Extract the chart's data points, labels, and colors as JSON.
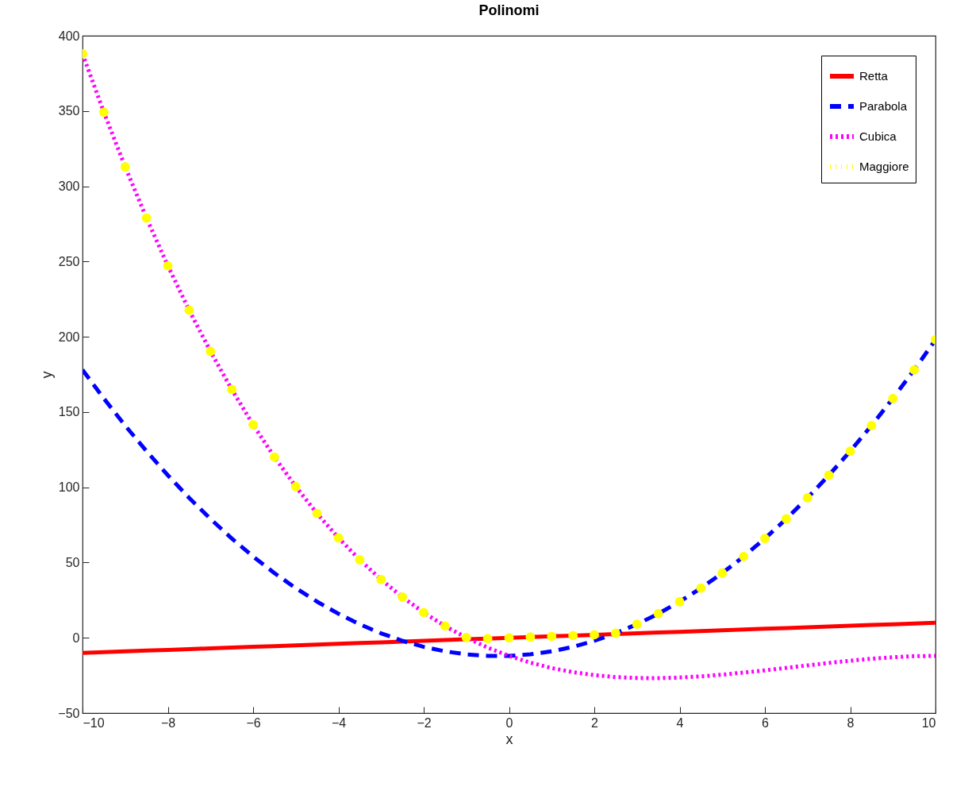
{
  "chart_data": {
    "type": "line",
    "title": "Polinomi",
    "xlabel": "x",
    "ylabel": "y",
    "x": [
      -10,
      -9.5,
      -9,
      -8.5,
      -8,
      -7.5,
      -7,
      -6.5,
      -6,
      -5.5,
      -5,
      -4.5,
      -4,
      -3.5,
      -3,
      -2.5,
      -2,
      -1.5,
      -1,
      -0.5,
      0,
      0.5,
      1,
      1.5,
      2,
      2.5,
      3,
      3.5,
      4,
      4.5,
      5,
      5.5,
      6,
      6.5,
      7,
      7.5,
      8,
      8.5,
      9,
      9.5,
      10
    ],
    "series": [
      {
        "name": "Retta",
        "color": "#ff0000",
        "line_style": "solid",
        "values": [
          -10,
          -9.5,
          -9,
          -8.5,
          -8,
          -7.5,
          -7,
          -6.5,
          -6,
          -5.5,
          -5,
          -4.5,
          -4,
          -3.5,
          -3,
          -2.5,
          -2,
          -1.5,
          -1,
          -0.5,
          0,
          0.5,
          1,
          1.5,
          2,
          2.5,
          3,
          3.5,
          4,
          4.5,
          5,
          5.5,
          6,
          6.5,
          7,
          7.5,
          8,
          8.5,
          9,
          9.5,
          10
        ]
      },
      {
        "name": "Parabola",
        "color": "#0000ff",
        "line_style": "dashed",
        "values": [
          178,
          159,
          141,
          124,
          108,
          93,
          79,
          66,
          54,
          43,
          33,
          24,
          16,
          9,
          3,
          -2,
          -6,
          -9,
          -11,
          -12,
          -12,
          -11,
          -9,
          -6,
          -2,
          3,
          9,
          16,
          24,
          33,
          43,
          54,
          66,
          79,
          93,
          108,
          124,
          141,
          159,
          178,
          198
        ]
      },
      {
        "name": "Cubica",
        "color": "#ff00ff",
        "line_style": "dotted",
        "values": [
          388,
          349.2,
          312.9,
          278.9,
          247.2,
          217.7,
          190.3,
          165,
          141.6,
          120.1,
          100.5,
          82.6,
          66.4,
          51.8,
          38.7,
          27.1,
          16.8,
          7.8,
          0.1,
          -6.5,
          -12,
          -16.5,
          -20.1,
          -22.8,
          -24.8,
          -26.1,
          -26.7,
          -26.8,
          -26.4,
          -25.6,
          -24.5,
          -23.1,
          -21.6,
          -20,
          -18.3,
          -16.7,
          -15.2,
          -13.9,
          -12.9,
          -12.2,
          -12
        ]
      },
      {
        "name": "Maggiore",
        "color": "#ffff00",
        "type": "scatter",
        "marker": "circle",
        "values": [
          388,
          349.2,
          312.9,
          278.9,
          247.2,
          217.7,
          190.3,
          165,
          141.6,
          120.1,
          100.5,
          82.6,
          66.4,
          51.8,
          38.7,
          27.1,
          16.8,
          7.8,
          0.1,
          -0.5,
          0,
          0.5,
          1,
          1.5,
          2,
          3,
          9,
          16,
          24,
          33,
          43,
          54,
          66,
          79,
          93,
          108,
          124,
          141,
          159,
          178,
          198
        ]
      }
    ],
    "xlim": [
      -10,
      10
    ],
    "xticks": [
      -10,
      -8,
      -6,
      -4,
      -2,
      0,
      2,
      4,
      6,
      8,
      10
    ],
    "ylim": [
      -50,
      400
    ],
    "yticks": [
      -50,
      0,
      50,
      100,
      150,
      200,
      250,
      300,
      350,
      400
    ],
    "grid": false,
    "legend": "top right"
  }
}
